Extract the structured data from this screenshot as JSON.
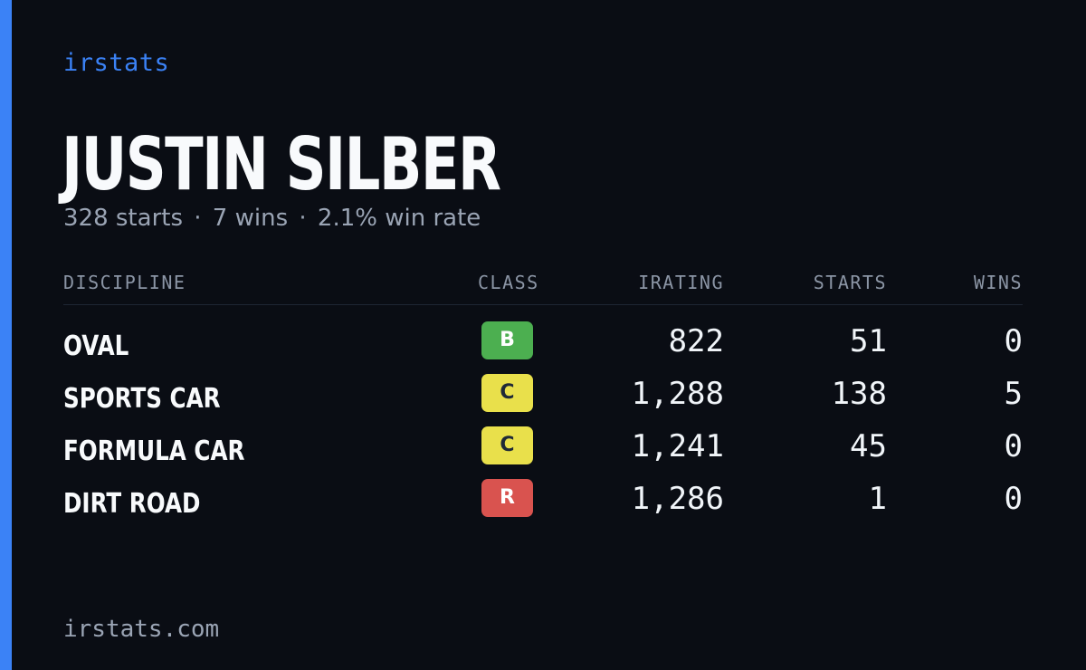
{
  "brand": "irstats",
  "driver": {
    "name": "JUSTIN SILBER",
    "starts_text": "328 starts",
    "wins_text": "7 wins",
    "win_rate_text": "2.1% win rate",
    "separator": "·"
  },
  "table": {
    "headers": {
      "discipline": "DISCIPLINE",
      "class": "CLASS",
      "irating": "IRATING",
      "starts": "STARTS",
      "wins": "WINS"
    },
    "rows": [
      {
        "discipline": "OVAL",
        "class": "B",
        "class_color": "#4caf50",
        "class_text_color": "#ffffff",
        "irating": "822",
        "starts": "51",
        "wins": "0"
      },
      {
        "discipline": "SPORTS CAR",
        "class": "C",
        "class_color": "#e9e04b",
        "class_text_color": "#1f2937",
        "irating": "1,288",
        "starts": "138",
        "wins": "5"
      },
      {
        "discipline": "FORMULA CAR",
        "class": "C",
        "class_color": "#e9e04b",
        "class_text_color": "#1f2937",
        "irating": "1,241",
        "starts": "45",
        "wins": "0"
      },
      {
        "discipline": "DIRT ROAD",
        "class": "R",
        "class_color": "#d9534f",
        "class_text_color": "#ffffff",
        "irating": "1,286",
        "starts": "1",
        "wins": "0"
      }
    ]
  },
  "footer": "irstats.com",
  "colors": {
    "accent": "#3b82f6",
    "background": "#0a0d14"
  }
}
